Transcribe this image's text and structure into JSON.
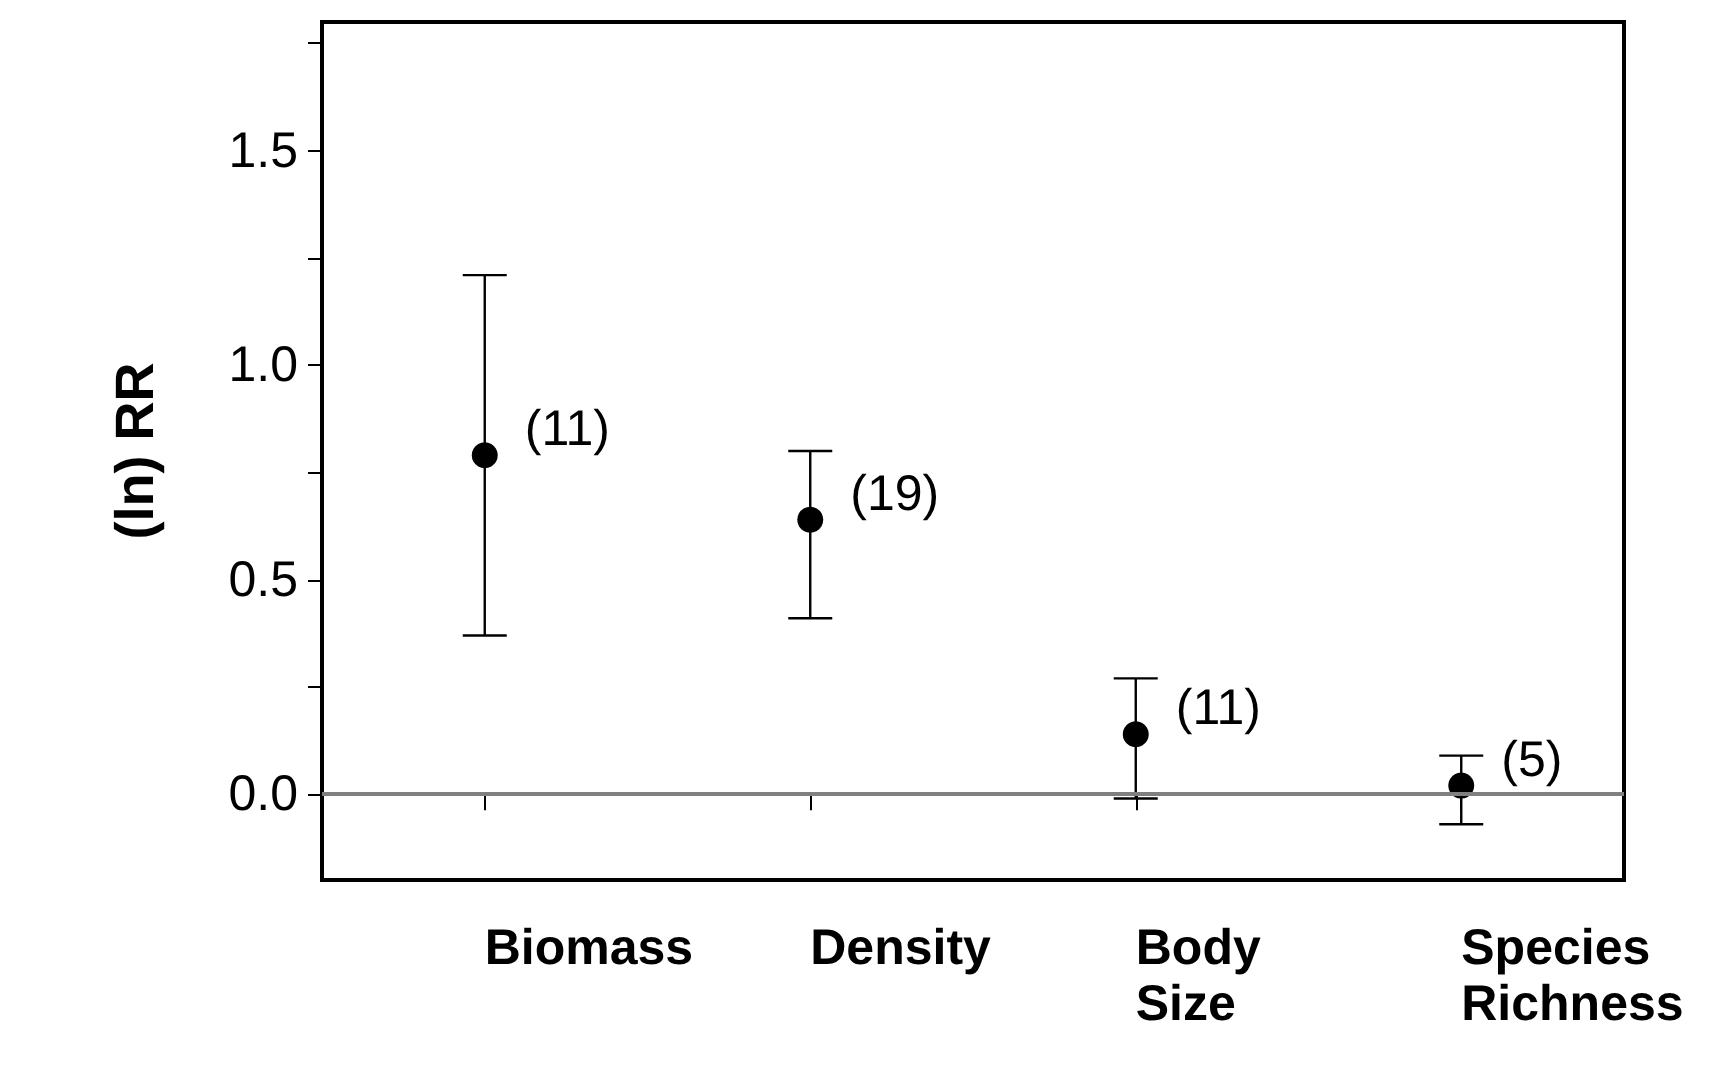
{
  "chart_data": {
    "type": "scatter",
    "ylabel": "(ln) RR",
    "categories": [
      "Biomass",
      "Density",
      "Body\nSize",
      "Species\nRichness"
    ],
    "series": [
      {
        "color": "#000000",
        "values": [
          0.79,
          0.64,
          0.14,
          0.02
        ],
        "errors": [
          [
            0.37,
            1.21
          ],
          [
            0.41,
            0.8
          ],
          [
            -0.01,
            0.27
          ],
          [
            -0.07,
            0.09
          ]
        ]
      }
    ],
    "marker": "circle",
    "ylim": [
      -0.2,
      1.8
    ],
    "yticks": [
      {
        "value": 0,
        "label": "0.0"
      },
      {
        "value": 0.25,
        "label": null
      },
      {
        "value": 0.5,
        "label": "0.5"
      },
      {
        "value": 0.75,
        "label": null
      },
      {
        "value": 1,
        "label": "1.0"
      },
      {
        "value": 1.25,
        "label": null
      },
      {
        "value": 1.5,
        "label": "1.5"
      },
      {
        "value": 1.75,
        "label": null
      }
    ],
    "ref_lines": [
      {
        "axis": "y",
        "value": 0,
        "color": "#808080"
      }
    ],
    "annotations": [
      "(11)",
      "(19)",
      "(11)",
      "(5)"
    ],
    "grid": false,
    "legend": false
  }
}
